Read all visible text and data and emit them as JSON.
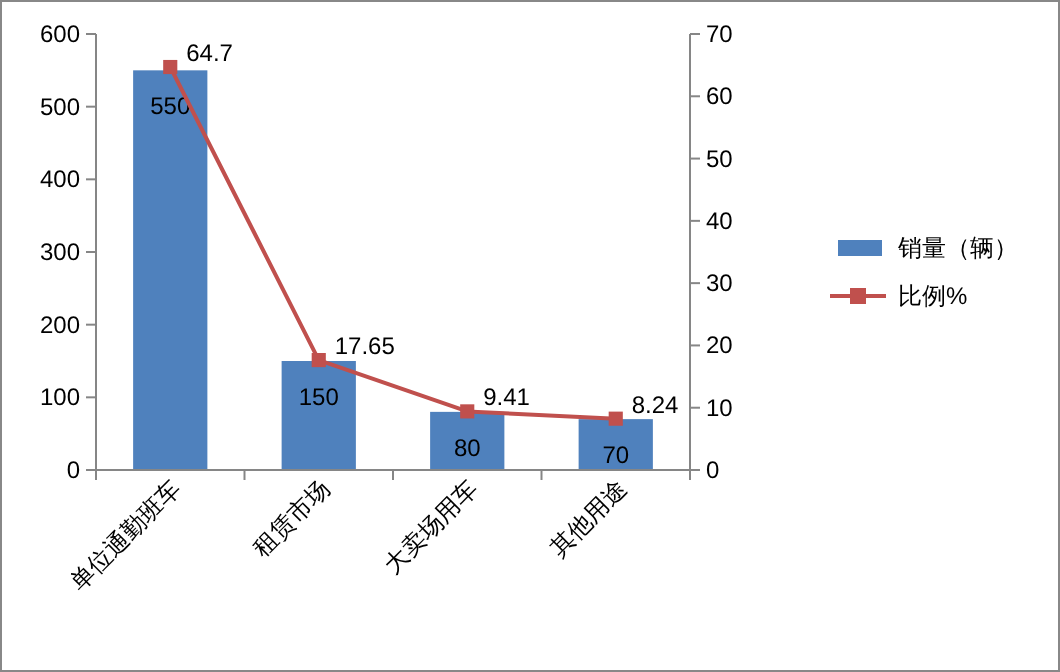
{
  "chart_data": {
    "type": "bar",
    "categories": [
      "单位通勤班车",
      "租赁市场",
      "大卖场用车",
      "其他用途"
    ],
    "series": [
      {
        "name": "销量（辆）",
        "color": "#4f81bd",
        "values": [
          550,
          150,
          80,
          70
        ]
      },
      {
        "name": "比例%",
        "color": "#c0504d",
        "values": [
          64.7,
          17.65,
          9.41,
          8.24
        ],
        "type": "line",
        "axis": "y2"
      }
    ],
    "ylim": [
      0,
      600
    ],
    "yticks": [
      0,
      100,
      200,
      300,
      400,
      500,
      600
    ],
    "y2lim": [
      0,
      70
    ],
    "y2ticks": [
      0,
      10,
      20,
      30,
      40,
      50,
      60,
      70
    ],
    "data_labels": true,
    "legend": "right",
    "marker": "square",
    "grid": false
  }
}
